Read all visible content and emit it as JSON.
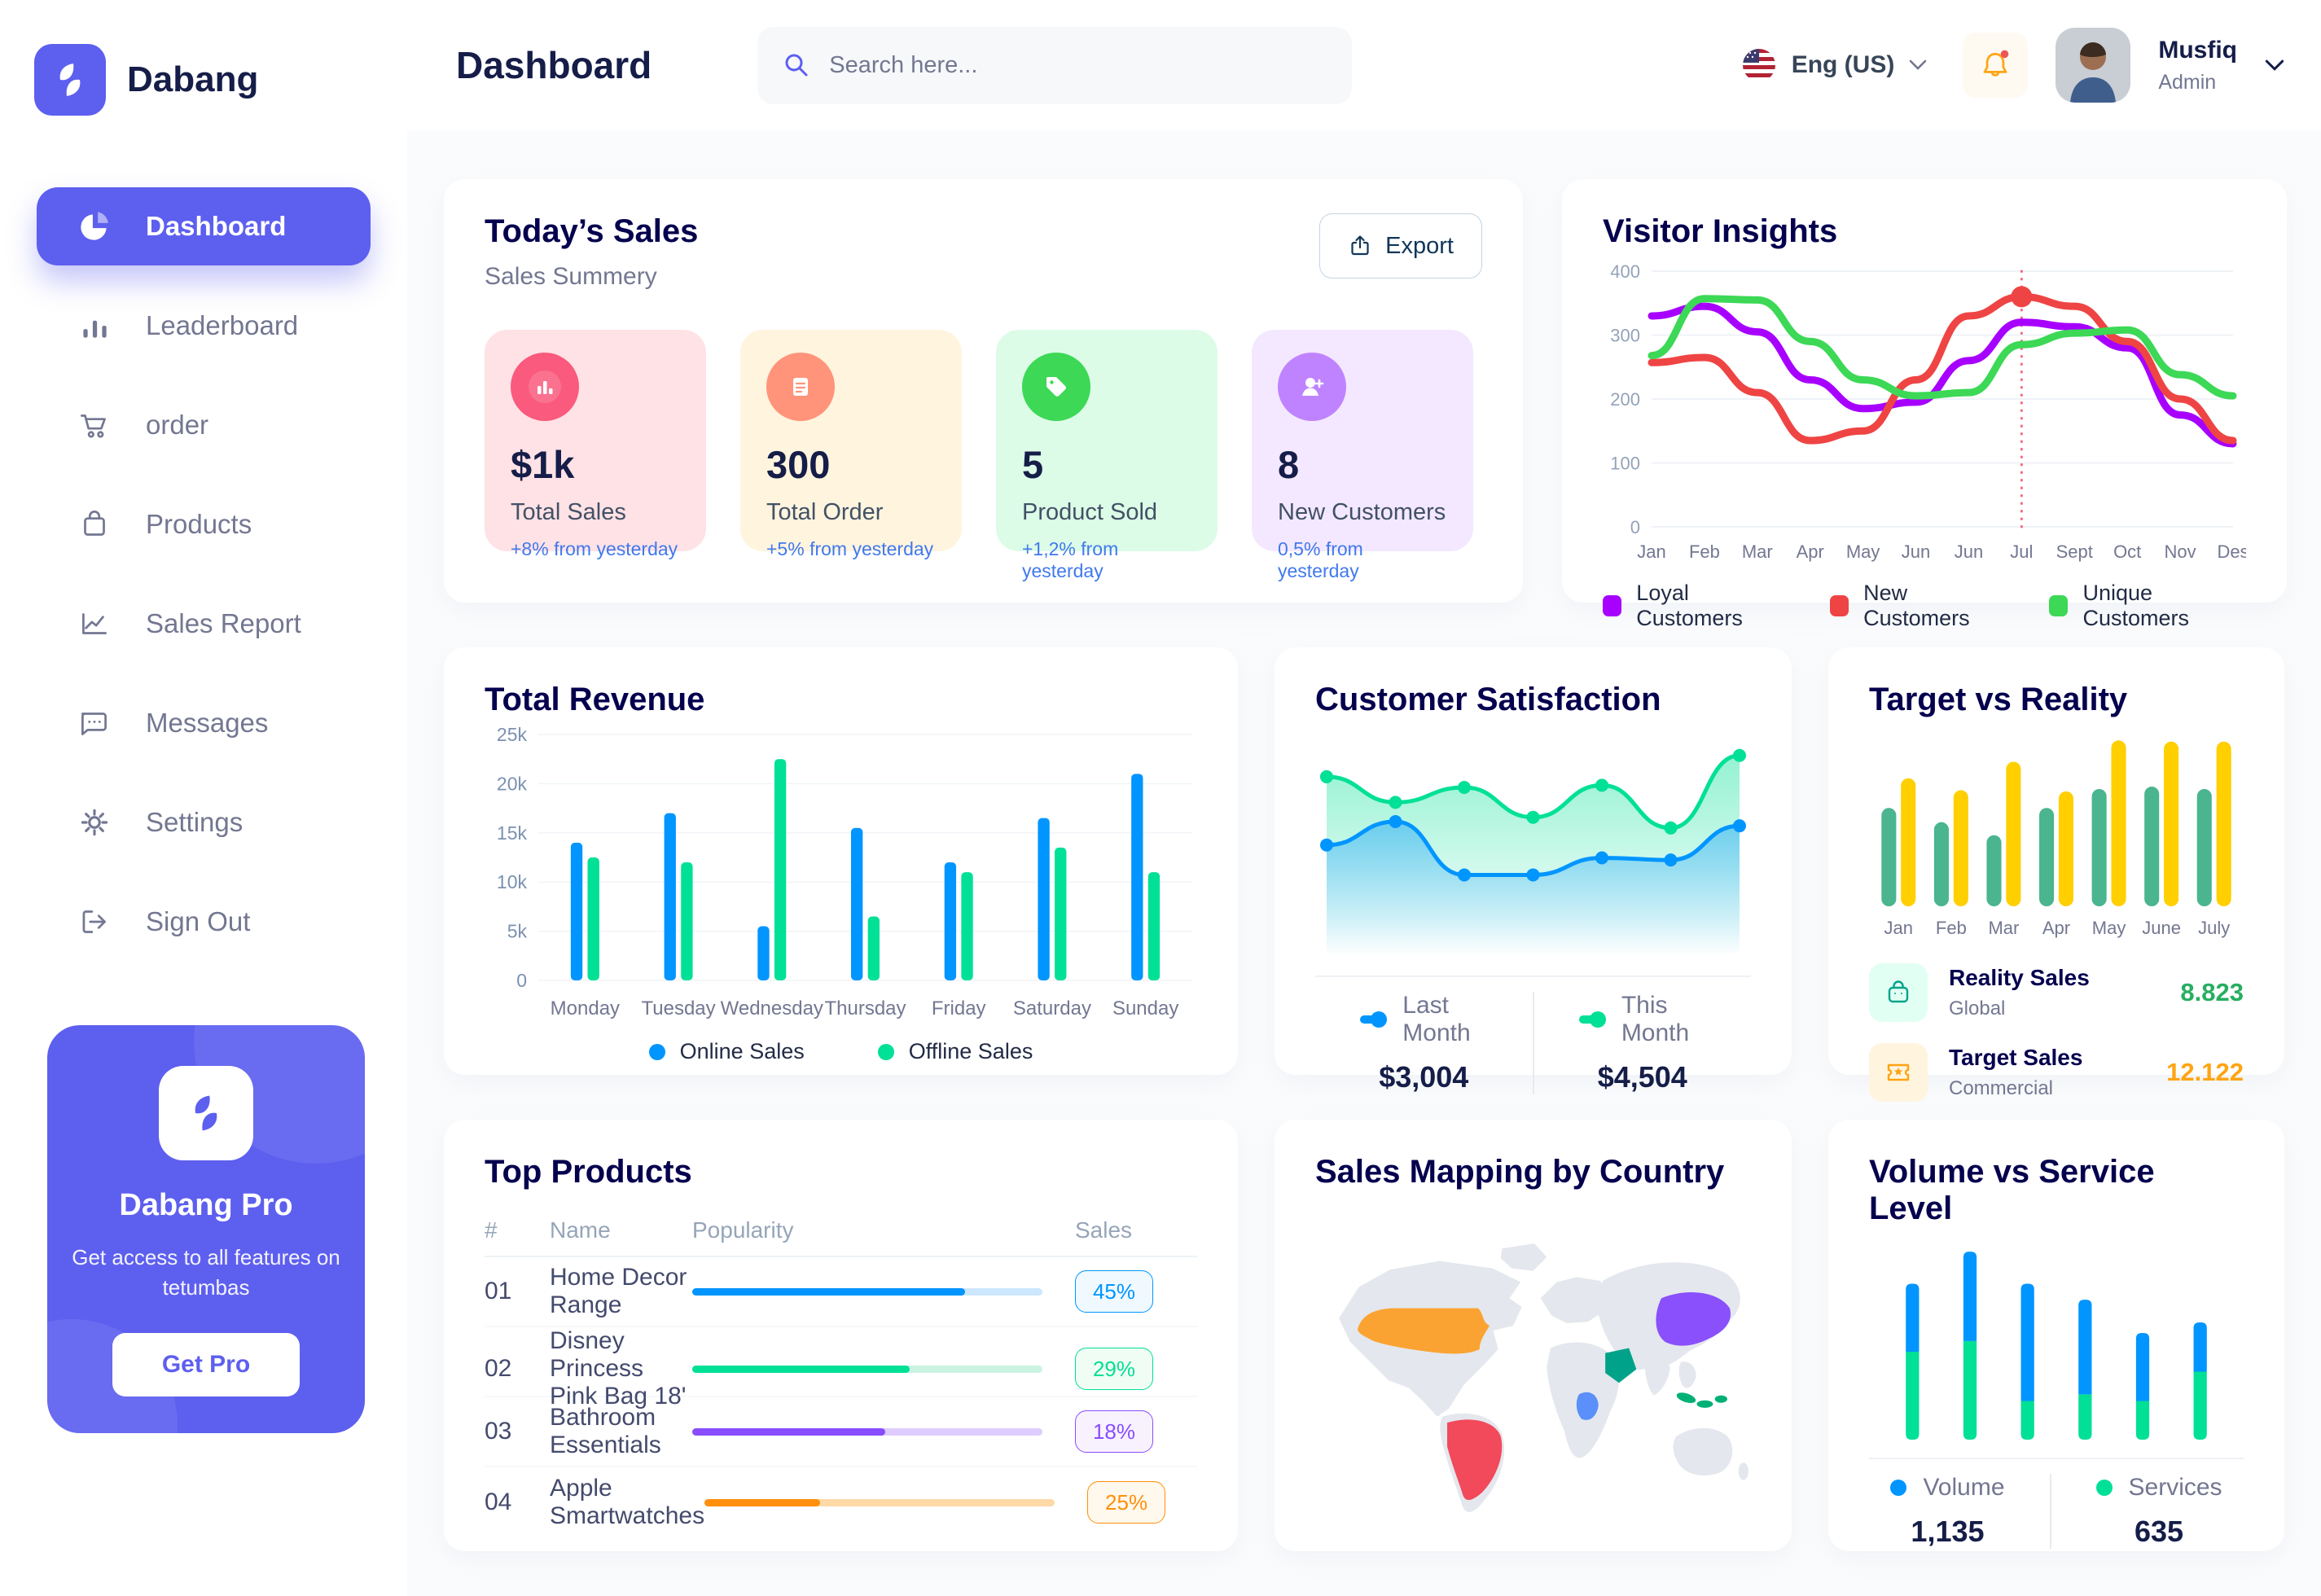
{
  "app": {
    "brand": "Dabang",
    "page_title": "Dashboard"
  },
  "header": {
    "search_placeholder": "Search here...",
    "language": "Eng (US)",
    "user": {
      "name": "Musfiq",
      "role": "Admin"
    },
    "icons": {
      "search": "magnifier",
      "language_flag": "us-flag",
      "notification": "bell-with-red-dot",
      "caret": "chevron-down"
    }
  },
  "sidebar": {
    "items": [
      {
        "label": "Dashboard",
        "icon": "pie-chart",
        "active": true
      },
      {
        "label": "Leaderboard",
        "icon": "bar-chart",
        "active": false
      },
      {
        "label": "order",
        "icon": "cart",
        "active": false
      },
      {
        "label": "Products",
        "icon": "shopping-bag",
        "active": false
      },
      {
        "label": "Sales Report",
        "icon": "line-chart",
        "active": false
      },
      {
        "label": "Messages",
        "icon": "chat-bubble",
        "active": false
      },
      {
        "label": "Settings",
        "icon": "gear",
        "active": false
      },
      {
        "label": "Sign Out",
        "icon": "sign-out",
        "active": false
      }
    ],
    "pro": {
      "title": "Dabang Pro",
      "subtitle": "Get access to all features on tetumbas",
      "cta": "Get Pro"
    }
  },
  "today_sales": {
    "title": "Today’s Sales",
    "subtitle": "Sales Summery",
    "export_label": "Export",
    "cards": [
      {
        "value": "$1k",
        "label": "Total Sales",
        "delta": "+8% from yesterday",
        "bg": "#FFE2E5",
        "icon_bg": "#FA5A7D",
        "icon": "bar-stats"
      },
      {
        "value": "300",
        "label": "Total Order",
        "delta": "+5% from yesterday",
        "bg": "#FFF4DE",
        "icon_bg": "#FF947A",
        "icon": "receipt"
      },
      {
        "value": "5",
        "label": "Product Sold",
        "delta": "+1,2% from yesterday",
        "bg": "#DCFCE7",
        "icon_bg": "#3CD856",
        "icon": "tag"
      },
      {
        "value": "8",
        "label": "New Customers",
        "delta": "0,5% from yesterday",
        "bg": "#F3E8FF",
        "icon_bg": "#BF83FF",
        "icon": "user-plus"
      }
    ],
    "delta_color": "#4079ED"
  },
  "top_products": {
    "title": "Top Products",
    "columns": [
      "#",
      "Name",
      "Popularity",
      "Sales"
    ],
    "rows": [
      {
        "num": "01",
        "name": "Home Decor Range",
        "popularity": 78,
        "sales": "45%",
        "bar_color": "#0095FF",
        "track_color": "#CDE7FF",
        "badge_bg": "#F0F9FF"
      },
      {
        "num": "02",
        "name": "Disney Princess Pink Bag 18'",
        "popularity": 62,
        "sales": "29%",
        "bar_color": "#00E096",
        "track_color": "#CBF3E2",
        "badge_bg": "#F0FDF4"
      },
      {
        "num": "03",
        "name": "Bathroom Essentials",
        "popularity": 55,
        "sales": "18%",
        "bar_color": "#884DFF",
        "track_color": "#DFCCFF",
        "badge_bg": "#F8F2FF"
      },
      {
        "num": "04",
        "name": "Apple Smartwatches",
        "popularity": 33,
        "sales": "25%",
        "bar_color": "#FF8F0D",
        "track_color": "#FFD9A6",
        "badge_bg": "#FFF8EC"
      }
    ]
  },
  "sales_mapping": {
    "title": "Sales Mapping by Country",
    "colors": {
      "usa": "#FBA332",
      "brazil": "#F2495B",
      "china": "#8950FC",
      "saudi_arabia": "#00A389",
      "dr_congo": "#5B8FF9",
      "indonesia": "#00B074"
    }
  },
  "chart_data": [
    {
      "id": "visitor_insights",
      "type": "line",
      "title": "Visitor Insights",
      "x": [
        "Jan",
        "Feb",
        "Mar",
        "Apr",
        "May",
        "Jun",
        "Jun",
        "Jul",
        "Sept",
        "Oct",
        "Nov",
        "Des"
      ],
      "ylim": [
        0,
        400
      ],
      "yticks": [
        0,
        100,
        200,
        300,
        400
      ],
      "grid": true,
      "legend_position": "bottom",
      "series": [
        {
          "name": "Loyal Customers",
          "color": "#A700FF",
          "values": [
            330,
            345,
            305,
            230,
            185,
            195,
            260,
            320,
            313,
            280,
            175,
            130
          ]
        },
        {
          "name": "New Customers",
          "color": "#EF4444",
          "values": [
            257,
            265,
            210,
            135,
            150,
            230,
            330,
            360,
            345,
            290,
            200,
            135
          ]
        },
        {
          "name": "Unique Customers",
          "color": "#3CD856",
          "values": [
            268,
            357,
            355,
            290,
            230,
            205,
            210,
            285,
            303,
            308,
            238,
            205
          ]
        }
      ],
      "annotation": {
        "type": "dotted-vline-with-marker",
        "x_index": 7,
        "x_label": "Jul",
        "marker_series": "New Customers",
        "marker_value": 360,
        "color": "#F64E60"
      }
    },
    {
      "id": "total_revenue",
      "type": "bar",
      "title": "Total Revenue",
      "categories": [
        "Monday",
        "Tuesday",
        "Wednesday",
        "Thursday",
        "Friday",
        "Saturday",
        "Sunday"
      ],
      "ylim": [
        0,
        25
      ],
      "yticks": [
        0,
        5,
        10,
        15,
        20,
        25
      ],
      "ytick_labels": [
        "0",
        "5k",
        "10k",
        "15k",
        "20k",
        "25k"
      ],
      "grid": true,
      "legend_position": "bottom",
      "series": [
        {
          "name": "Online Sales",
          "color": "#0095FF",
          "values": [
            14,
            17,
            5.5,
            15.5,
            12,
            16.5,
            21
          ]
        },
        {
          "name": "Offline Sales",
          "color": "#00E096",
          "values": [
            12.5,
            12,
            22.5,
            6.5,
            11,
            13.5,
            11
          ]
        }
      ]
    },
    {
      "id": "customer_satisfaction",
      "type": "area",
      "title": "Customer Satisfaction",
      "ylim": [
        0,
        100
      ],
      "x_count": 7,
      "series": [
        {
          "name": "Last Month",
          "total": "$3,004",
          "color": "#0095FF",
          "values": [
            52,
            63,
            38,
            38,
            46,
            45,
            61
          ]
        },
        {
          "name": "This Month",
          "total": "$4,504",
          "color": "#00E096",
          "values": [
            84,
            72,
            79,
            65,
            80,
            60,
            94
          ]
        }
      ]
    },
    {
      "id": "target_vs_reality",
      "type": "bar",
      "title": "Target vs Reality",
      "categories": [
        "Jan",
        "Feb",
        "Mar",
        "Apr",
        "May",
        "June",
        "July"
      ],
      "ylim": [
        0,
        14.5
      ],
      "grid": false,
      "series": [
        {
          "name": "Reality Sales",
          "subtitle": "Global",
          "color": "#4AB58E",
          "icon_bg": "#E2FFF3",
          "value_label": "8.823",
          "value_color": "#27AE60",
          "values": [
            8.3,
            7.1,
            6.0,
            8.3,
            9.9,
            10.1,
            9.9
          ]
        },
        {
          "name": "Target Sales",
          "subtitle": "Commercial",
          "color": "#FFCF00",
          "icon_bg": "#FFF4DE",
          "value_label": "12.122",
          "value_color": "#FFA412",
          "values": [
            10.8,
            9.8,
            12.2,
            9.7,
            14.0,
            13.9,
            13.9
          ]
        }
      ]
    },
    {
      "id": "volume_vs_service",
      "type": "stacked-bar",
      "title": "Volume vs Service Level",
      "ylim": [
        0,
        730
      ],
      "bars": 6,
      "series": [
        {
          "name": "Volume",
          "total": "1,135",
          "color": "#0095FF",
          "values": [
            255,
            335,
            440,
            355,
            255,
            185
          ]
        },
        {
          "name": "Services",
          "total": "635",
          "color": "#00E096",
          "values": [
            330,
            370,
            145,
            170,
            145,
            255
          ]
        }
      ],
      "stack_order": "services-bottom"
    }
  ]
}
